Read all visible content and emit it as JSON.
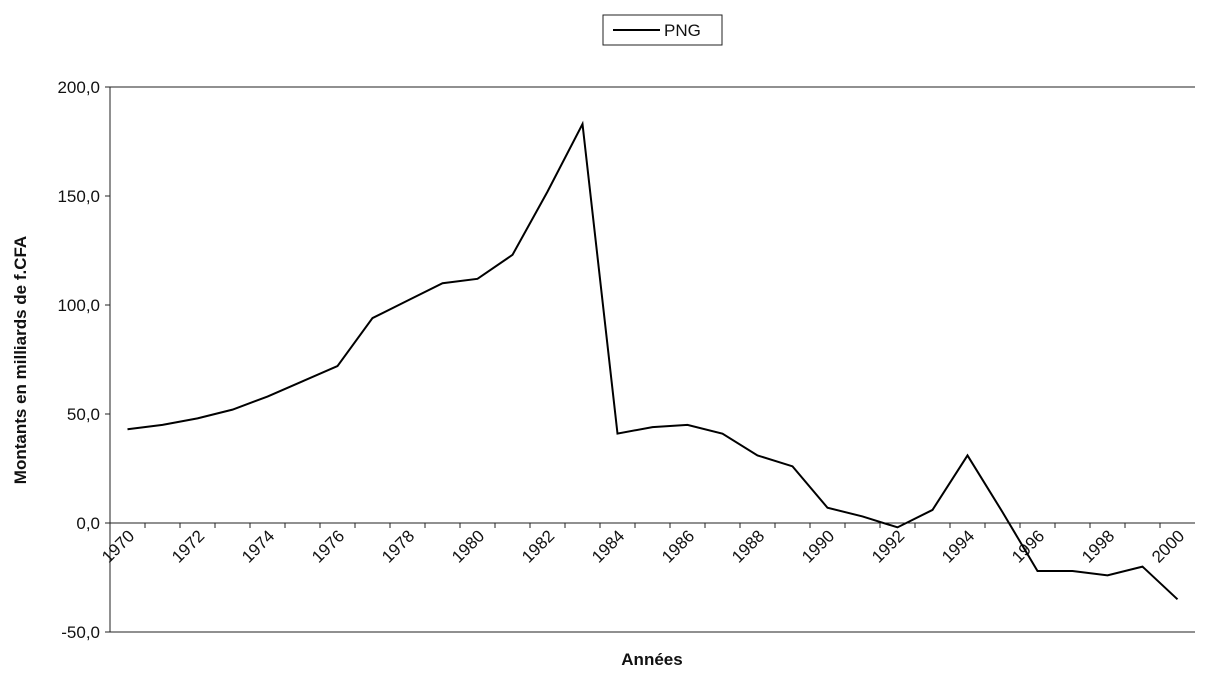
{
  "chart_data": {
    "type": "line",
    "y_label": "Montants en milliards de f.CFA",
    "x_label": "Années",
    "categories": [
      "1970",
      null,
      "1972",
      null,
      "1974",
      null,
      "1976",
      null,
      "1978",
      null,
      "1980",
      null,
      "1982",
      null,
      "1984",
      null,
      "1986",
      null,
      "1988",
      null,
      "1990",
      null,
      "1992",
      null,
      "1994",
      null,
      "1996",
      null,
      "1998",
      null,
      "2000"
    ],
    "series": [
      {
        "name": "PNG",
        "color": "#000000",
        "values": [
          43,
          45,
          48,
          52,
          58,
          65,
          72,
          94,
          102,
          110,
          112,
          123,
          152,
          183,
          41,
          44,
          45,
          41,
          31,
          26,
          7,
          3,
          -2,
          6,
          31,
          5,
          -22,
          -22,
          -24,
          -20,
          -35
        ]
      }
    ],
    "ylim": [
      -50,
      200
    ],
    "yticks": [
      {
        "value": -50,
        "label": "-50,0"
      },
      {
        "value": 0,
        "label": "0,0"
      },
      {
        "value": 50,
        "label": "50,0"
      },
      {
        "value": 100,
        "label": "100,0"
      },
      {
        "value": 150,
        "label": "150,0"
      },
      {
        "value": 200,
        "label": "200,0"
      }
    ],
    "grid": false,
    "legend": "top"
  }
}
